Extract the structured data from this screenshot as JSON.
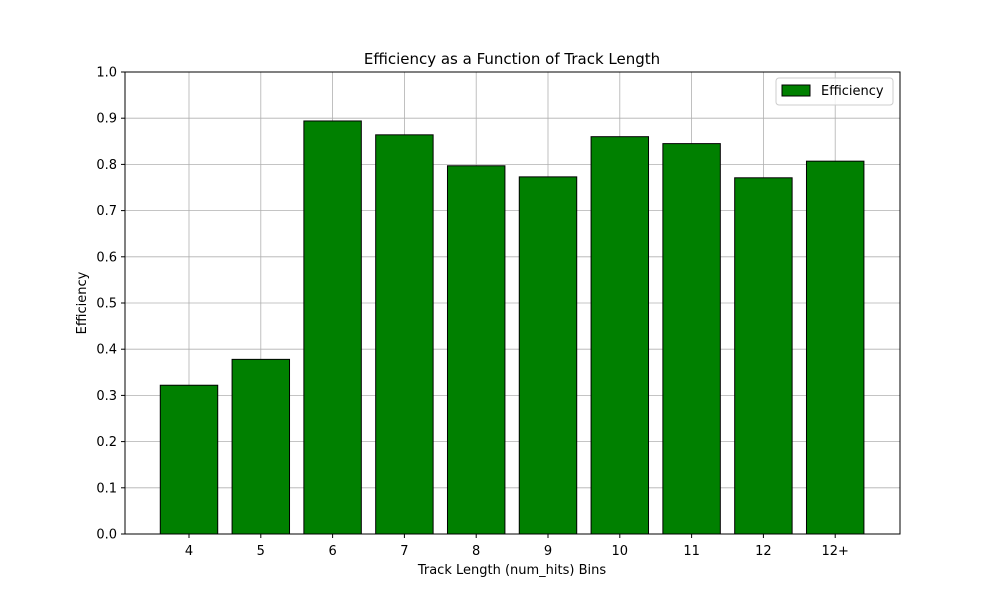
{
  "chart_data": {
    "type": "bar",
    "title": "Efficiency as a Function of Track Length",
    "xlabel": "Track Length (num_hits) Bins",
    "ylabel": "Efficiency",
    "categories": [
      "4",
      "5",
      "6",
      "7",
      "8",
      "9",
      "10",
      "11",
      "12",
      "12+"
    ],
    "series": [
      {
        "name": "Efficiency",
        "values": [
          0.322,
          0.378,
          0.894,
          0.864,
          0.797,
          0.773,
          0.86,
          0.845,
          0.771,
          0.807
        ],
        "color": "#008000",
        "edge_color": "#000000"
      }
    ],
    "ylim": [
      0,
      1.0
    ],
    "yticks": [
      "0.0",
      "0.1",
      "0.2",
      "0.3",
      "0.4",
      "0.5",
      "0.6",
      "0.7",
      "0.8",
      "0.9",
      "1.0"
    ],
    "grid": true,
    "legend": "top-right"
  }
}
